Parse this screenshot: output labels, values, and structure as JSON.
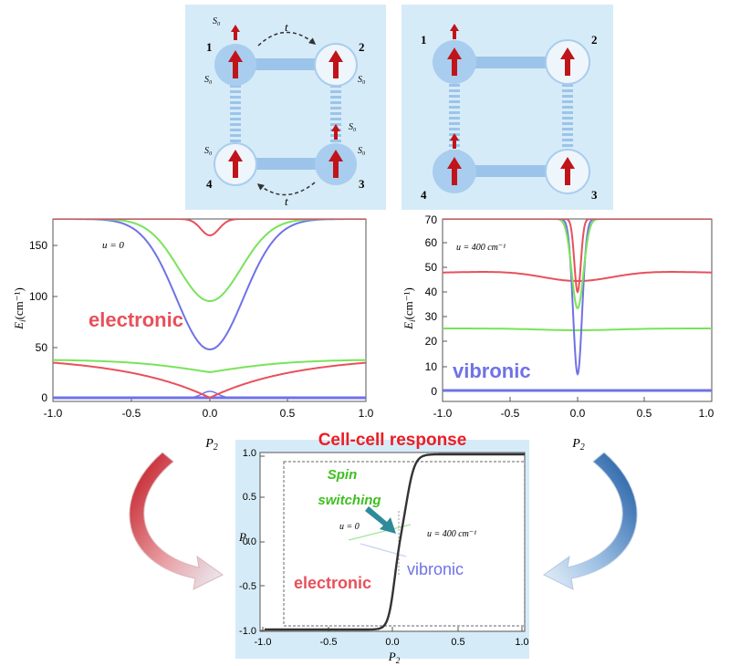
{
  "colors": {
    "panel_bg": "#d6ebf8",
    "node_filled": "#a9cdee",
    "node_empty": "#eef6fc",
    "bar": "#9cc4ea",
    "spin": "#c0141a",
    "red": "#e8505b",
    "green": "#79e35a",
    "blue": "#6f72e6",
    "title_red": "#ec1d24",
    "spin_green": "#3fbf1f",
    "arrow_red": "#d3202a",
    "arrow_blue": "#1d5fa8",
    "teal": "#2e8b9a"
  },
  "diagram_left": {
    "labels": {
      "n1": "1",
      "n2": "2",
      "n3": "3",
      "n4": "4",
      "s1": "S₀",
      "s1b": "S₀",
      "s2": "S₀",
      "s3": "S₀",
      "s4": "S₀",
      "s3b": "S₀",
      "t_top": "t",
      "t_bottom": "t"
    }
  },
  "diagram_right": {
    "labels": {
      "n1": "1",
      "n2": "2",
      "n3": "3",
      "n4": "4"
    }
  },
  "plot_left": {
    "annotation": "u = 0",
    "label": "electronic",
    "ylabel_main": "E",
    "ylabel_sub": "i",
    "ylabel_unit": "(cm⁻¹)",
    "xlabel_main": "P",
    "xlabel_sub": "2",
    "yticks": [
      "0",
      "50",
      "100",
      "150"
    ],
    "xticks": [
      "-1.0",
      "-0.5",
      "0.0",
      "0.5",
      "1.0"
    ]
  },
  "plot_right": {
    "annotation": "u = 400 cm⁻¹",
    "label": "vibronic",
    "ylabel_main": "E",
    "ylabel_sub": "i",
    "ylabel_unit": "(cm⁻¹)",
    "xlabel_main": "P",
    "xlabel_sub": "2",
    "yticks": [
      "0",
      "10",
      "20",
      "30",
      "40",
      "50",
      "60",
      "70"
    ],
    "xticks": [
      "-1.0",
      "-0.5",
      "0.0",
      "0.5",
      "1.0"
    ]
  },
  "plot_bottom": {
    "title": "Cell-cell response",
    "spin_line1": "Spin",
    "spin_line2": "switching",
    "annotation_u0": "u = 0",
    "annotation_u400": "u = 400 cm⁻¹",
    "label_electronic": "electronic",
    "label_vibronic": "vibronic",
    "ylabel_main": "P",
    "ylabel_sub": "1",
    "xlabel_main": "P",
    "xlabel_sub": "2",
    "yticks": [
      "-1.0",
      "-0.5",
      "0.0",
      "0.5",
      "1.0"
    ],
    "xticks": [
      "-1.0",
      "-0.5",
      "0.0",
      "0.5",
      "1.0"
    ]
  }
}
